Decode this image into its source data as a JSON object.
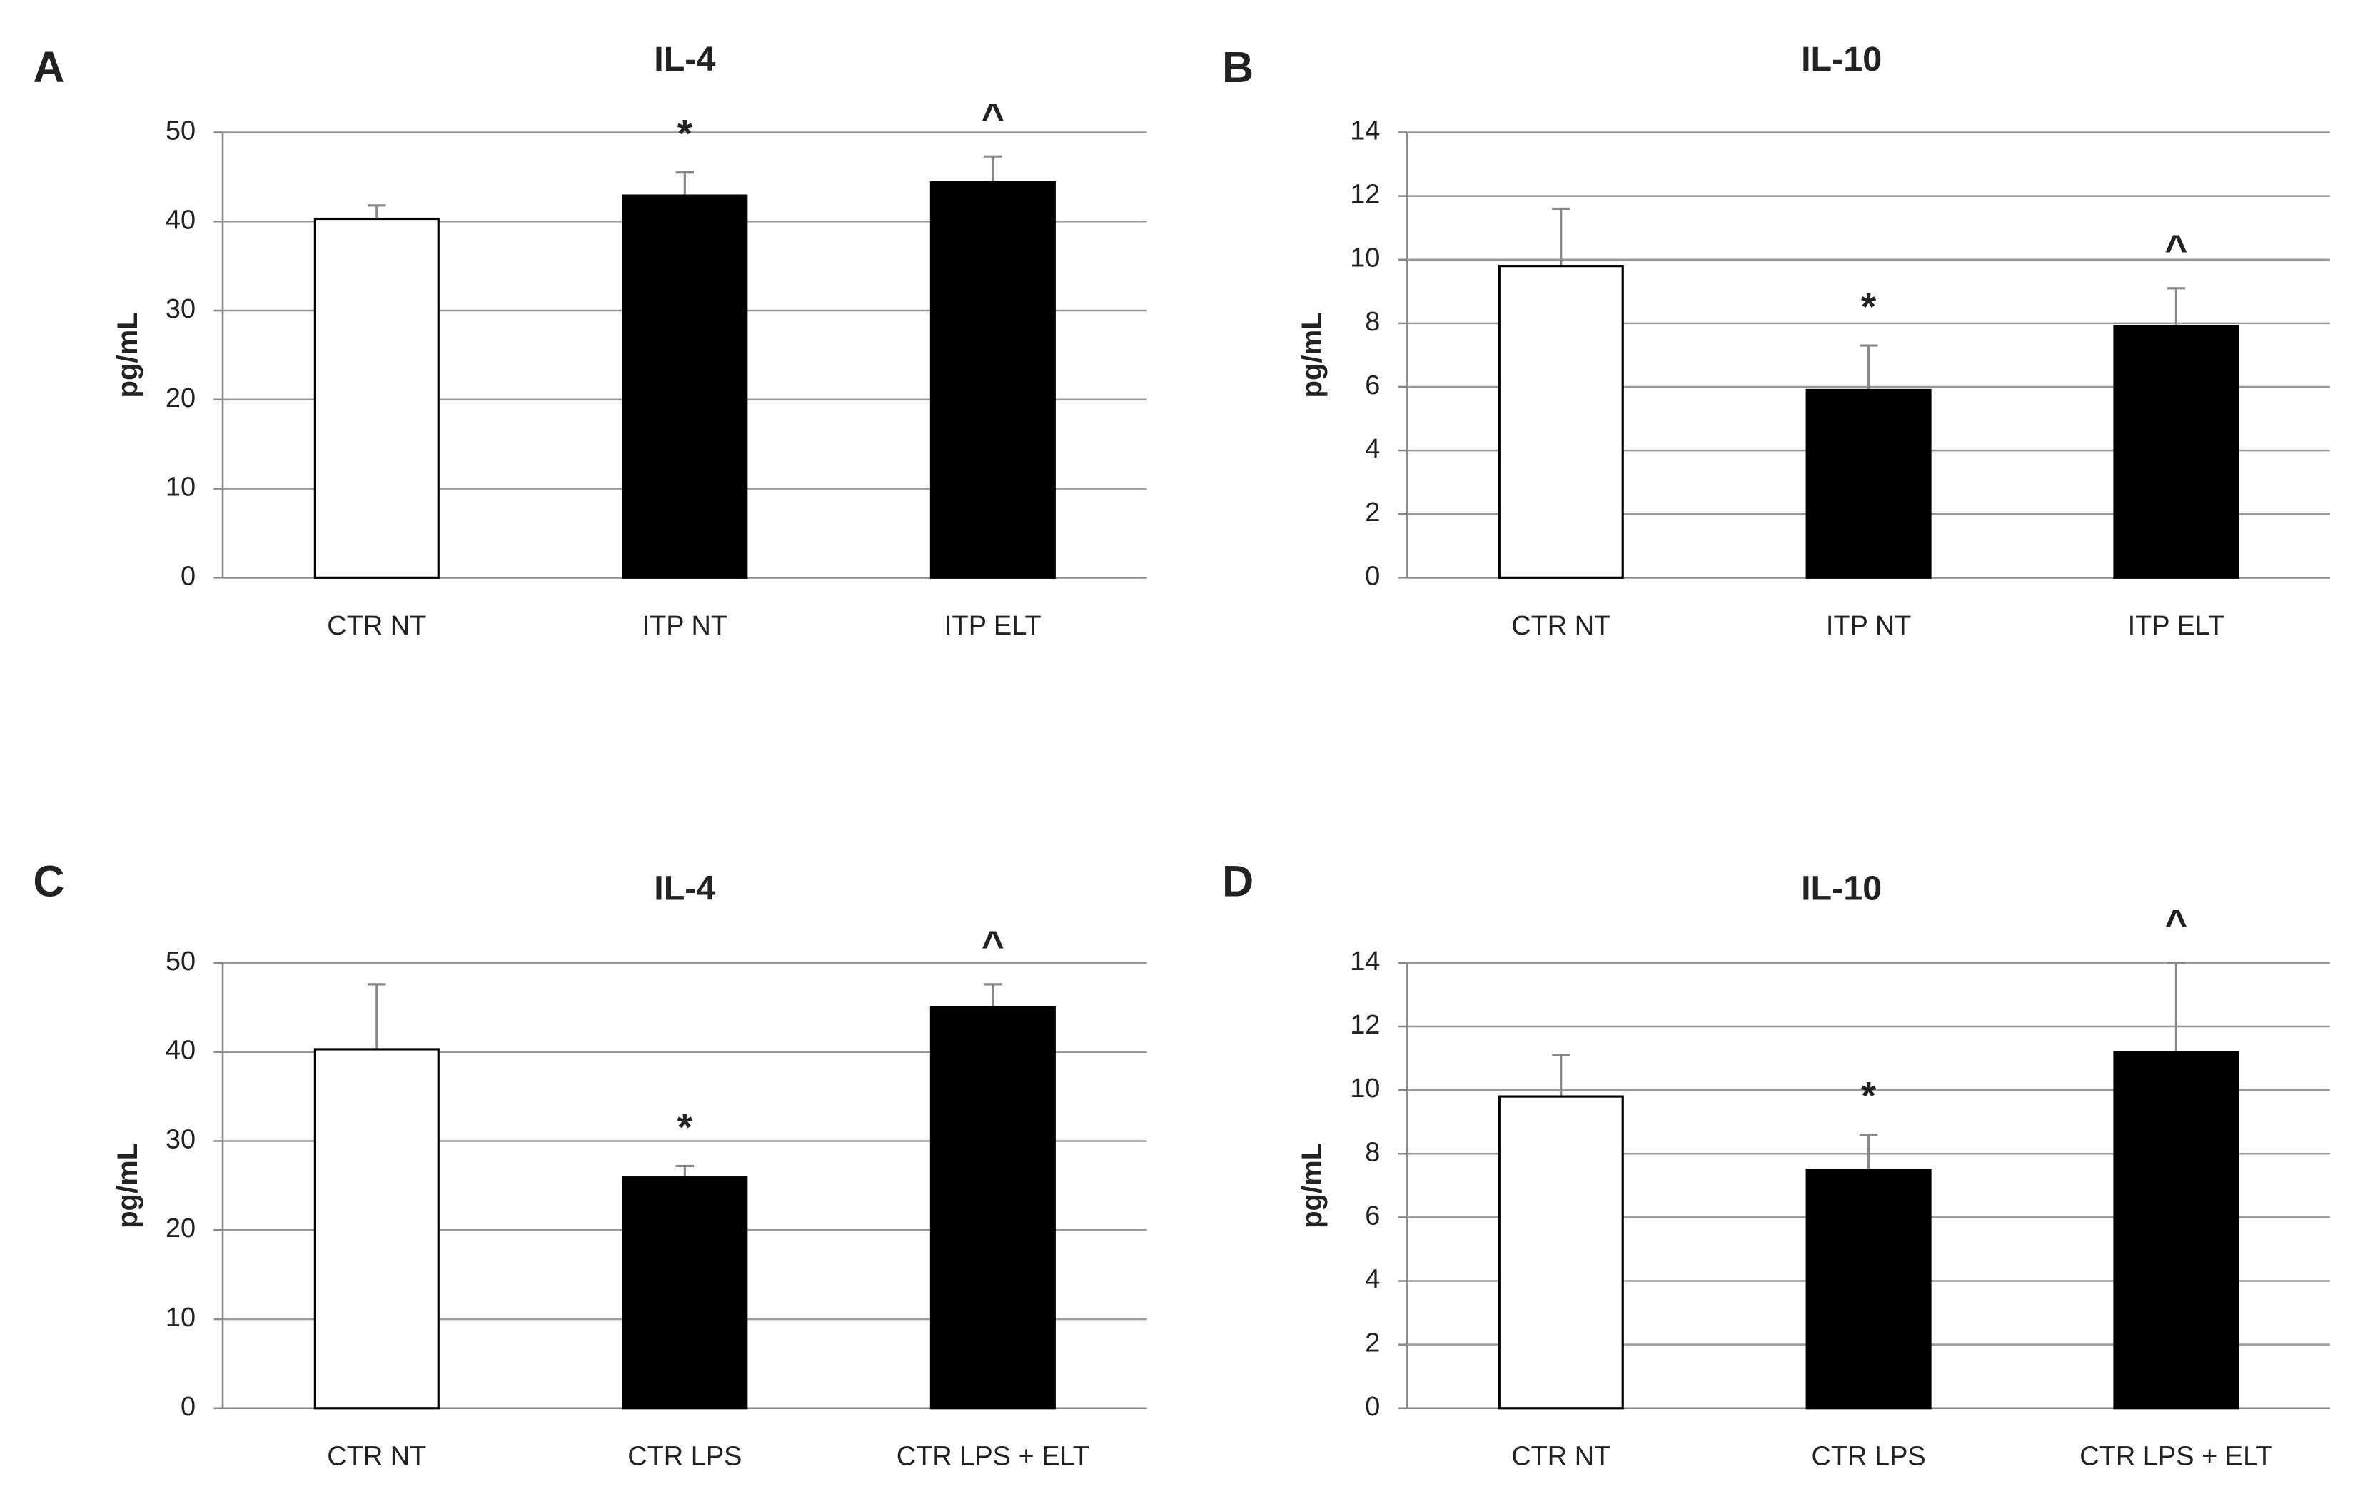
{
  "chart_data": [
    {
      "type": "bar",
      "panel": "A",
      "title": "IL-4",
      "y_label": "pg/mL",
      "categories": [
        "CTR NT",
        "ITP NT",
        "ITP ELT"
      ],
      "values": [
        40.3,
        42.9,
        44.4
      ],
      "errors": [
        1.5,
        2.6,
        2.9
      ],
      "colors": [
        "#ffffff",
        "#000000",
        "#000000"
      ],
      "annotations": [
        null,
        "*",
        "^"
      ],
      "ylim": [
        0,
        50
      ],
      "yticks": [
        0,
        10,
        20,
        30,
        40,
        50
      ],
      "grid": true
    },
    {
      "type": "bar",
      "panel": "B",
      "title": "IL-10",
      "y_label": "pg/mL",
      "categories": [
        "CTR NT",
        "ITP NT",
        "ITP ELT"
      ],
      "values": [
        9.8,
        5.9,
        7.9
      ],
      "errors": [
        1.8,
        1.4,
        1.2
      ],
      "colors": [
        "#ffffff",
        "#000000",
        "#000000"
      ],
      "annotations": [
        null,
        "*",
        "^"
      ],
      "ylim": [
        0,
        14
      ],
      "yticks": [
        0,
        2,
        4,
        6,
        8,
        10,
        12,
        14
      ],
      "grid": true
    },
    {
      "type": "bar",
      "panel": "C",
      "title": "IL-4",
      "y_label": "pg/mL",
      "categories": [
        "CTR NT",
        "CTR LPS",
        "CTR LPS + ELT"
      ],
      "values": [
        40.3,
        25.9,
        45.0
      ],
      "errors": [
        7.3,
        1.3,
        2.6
      ],
      "colors": [
        "#ffffff",
        "#000000",
        "#000000"
      ],
      "annotations": [
        null,
        "*",
        "^"
      ],
      "ylim": [
        0,
        50
      ],
      "yticks": [
        0,
        10,
        20,
        30,
        40,
        50
      ],
      "grid": true
    },
    {
      "type": "bar",
      "panel": "D",
      "title": "IL-10",
      "y_label": "pg/mL",
      "categories": [
        "CTR NT",
        "CTR LPS",
        "CTR LPS + ELT"
      ],
      "values": [
        9.8,
        7.5,
        11.2
      ],
      "errors": [
        1.3,
        1.1,
        2.8
      ],
      "colors": [
        "#ffffff",
        "#000000",
        "#000000"
      ],
      "annotations": [
        null,
        "*",
        "^"
      ],
      "ylim": [
        0,
        14
      ],
      "yticks": [
        0,
        2,
        4,
        6,
        8,
        10,
        12,
        14
      ],
      "grid": true
    }
  ]
}
